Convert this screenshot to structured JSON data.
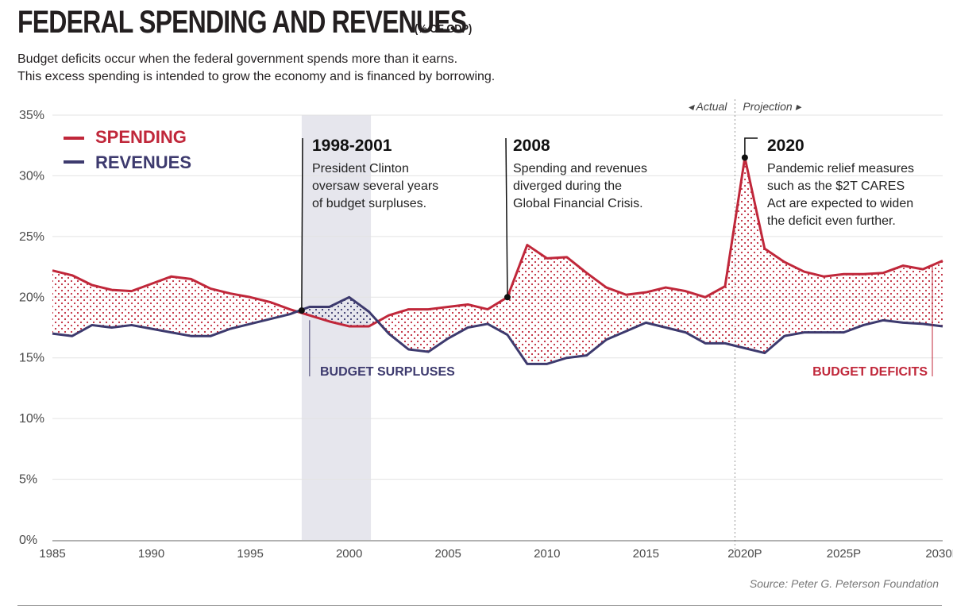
{
  "header": {
    "title": "FEDERAL SPENDING AND REVENUES",
    "unit": "(% OF GDP)",
    "subtitle_line1": "Budget deficits occur when the federal government spends more than it earns.",
    "subtitle_line2": "This excess spending is intended to grow the economy and is financed by borrowing."
  },
  "source": "Source: Peter G. Peterson Foundation",
  "colors": {
    "spending": "#c0273a",
    "revenues": "#3d3a6e",
    "shade": "#e6e6ed",
    "grid": "#e3e3e3",
    "axis": "#555555"
  },
  "chart_data": {
    "type": "line",
    "x": [
      1985,
      1986,
      1987,
      1988,
      1989,
      1990,
      1991,
      1992,
      1993,
      1994,
      1995,
      1996,
      1997,
      1998,
      1999,
      2000,
      2001,
      2002,
      2003,
      2004,
      2005,
      2006,
      2007,
      2008,
      2009,
      2010,
      2011,
      2012,
      2013,
      2014,
      2015,
      2016,
      2017,
      2018,
      2019,
      2020,
      2021,
      2022,
      2023,
      2024,
      2025,
      2026,
      2027,
      2028,
      2029,
      2030
    ],
    "series": [
      {
        "name": "SPENDING",
        "values": [
          22.2,
          21.8,
          21.0,
          20.6,
          20.5,
          21.1,
          21.7,
          21.5,
          20.7,
          20.3,
          20.0,
          19.6,
          19.0,
          18.5,
          18.0,
          17.6,
          17.6,
          18.5,
          19.0,
          19.0,
          19.2,
          19.4,
          19.0,
          20.0,
          24.3,
          23.2,
          23.3,
          22.0,
          20.8,
          20.2,
          20.4,
          20.8,
          20.5,
          20.0,
          20.9,
          31.5,
          24.0,
          22.9,
          22.1,
          21.7,
          21.9,
          21.9,
          22.0,
          22.6,
          22.3,
          23.0
        ]
      },
      {
        "name": "REVENUES",
        "values": [
          17.0,
          16.8,
          17.7,
          17.5,
          17.7,
          17.4,
          17.1,
          16.8,
          16.8,
          17.4,
          17.8,
          18.2,
          18.6,
          19.2,
          19.2,
          20.0,
          18.8,
          17.0,
          15.7,
          15.5,
          16.6,
          17.5,
          17.8,
          16.9,
          14.5,
          14.5,
          15.0,
          15.2,
          16.5,
          17.2,
          17.9,
          17.5,
          17.1,
          16.2,
          16.2,
          15.8,
          15.4,
          16.8,
          17.1,
          17.1,
          17.1,
          17.7,
          18.1,
          17.9,
          17.8,
          17.6
        ]
      }
    ],
    "ylim": [
      0,
      35
    ],
    "yticks": [
      "0%",
      "5%",
      "10%",
      "15%",
      "20%",
      "25%",
      "30%",
      "35%"
    ],
    "xticks": [
      {
        "x": 1985,
        "label": "1985"
      },
      {
        "x": 1990,
        "label": "1990"
      },
      {
        "x": 1995,
        "label": "1995"
      },
      {
        "x": 2000,
        "label": "2000"
      },
      {
        "x": 2005,
        "label": "2005"
      },
      {
        "x": 2010,
        "label": "2010"
      },
      {
        "x": 2015,
        "label": "2015"
      },
      {
        "x": 2020,
        "label": "2020P"
      },
      {
        "x": 2025,
        "label": "2025P"
      },
      {
        "x": 2030,
        "label": "2030P"
      }
    ],
    "grid": true,
    "legend": "top-left",
    "actual_label": "◂  Actual",
    "projection_label": "Projection  ▸",
    "projection_start": 2019.5,
    "shaded_period": [
      1997.6,
      2001.1
    ],
    "area_labels": {
      "surplus": "BUDGET SURPLUSES",
      "deficit": "BUDGET DEFICITS"
    },
    "annotations": [
      {
        "year": 1997.6,
        "value": 18.9,
        "title": "1998-2001",
        "lines": [
          "President Clinton",
          "oversaw several years",
          "of budget surpluses."
        ]
      },
      {
        "year": 2008,
        "value": 20.0,
        "title": "2008",
        "lines": [
          "Spending and revenues",
          "diverged during the",
          "Global Financial Crisis."
        ]
      },
      {
        "year": 2020,
        "value": 31.5,
        "title": "2020",
        "lines": [
          "Pandemic relief measures",
          "such as the $2T CARES",
          "Act are expected to widen",
          "the deficit even further."
        ]
      }
    ]
  }
}
